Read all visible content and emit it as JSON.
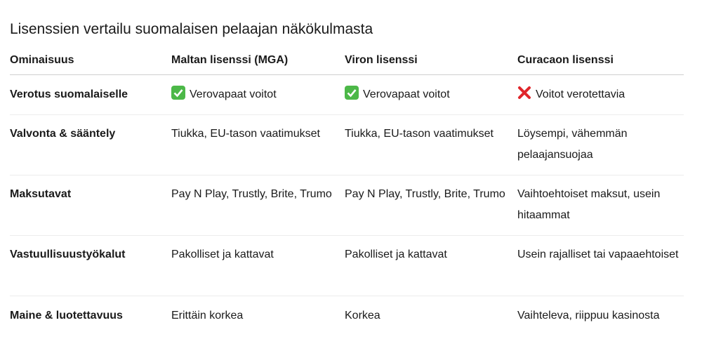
{
  "title": "Lisenssien vertailu suomalaisen pelaajan näkökulmasta",
  "table": {
    "header": [
      "Ominaisuus",
      "Maltan lisenssi (MGA)",
      "Viron lisenssi",
      "Curacaon lisenssi"
    ],
    "rows": [
      [
        "Verotus suomalaiselle",
        "Verovapaat voitot",
        "Verovapaat voitot",
        "Voitot verotettavia"
      ],
      [
        "Valvonta & sääntely",
        "Tiukka, EU-tason vaatimukset",
        "Tiukka, EU-tason vaatimukset",
        "Löysempi, vähemmän pelaajansuojaa"
      ],
      [
        "Maksutavat",
        "Pay N Play, Trustly, Brite, Trumo",
        "Pay N Play, Trustly, Brite, Trumo",
        "Vaihtoehtoiset maksut, usein hitaammat"
      ],
      [
        "Vastuullisuustyökalut",
        "Pakolliset ja kattavat",
        "Pakolliset ja kattavat",
        "Usein rajalliset tai vapaaehtoiset"
      ],
      [
        "Maine & luotettavuus",
        "Erittäin korkea",
        "Korkea",
        "Vaihteleva, riippuu kasinosta"
      ]
    ]
  }
}
